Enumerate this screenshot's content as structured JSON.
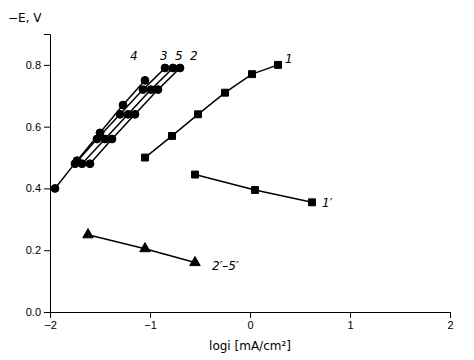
{
  "chart_data": {
    "type": "line",
    "xlabel": "logi [mA/cm²]",
    "ylabel": "−E, V",
    "xlim": [
      -2,
      2
    ],
    "ylim": [
      0,
      0.9
    ],
    "xticks": [
      {
        "value": -2,
        "label": "−2"
      },
      {
        "value": -1,
        "label": "−1"
      },
      0,
      1,
      2
    ],
    "yticks": [
      {
        "value": 0,
        "label": "0.0"
      },
      0.2,
      0.4,
      0.6,
      0.8
    ],
    "grid": false,
    "series": [
      {
        "color": "black",
        "marker": "circle",
        "x": [
          -1.95,
          -1.73,
          -1.5,
          -1.27,
          -1.05
        ],
        "values": [
          0.4,
          0.49,
          0.58,
          0.67,
          0.75
        ]
      },
      {
        "color": "black",
        "marker": "circle",
        "x": [
          -1.75,
          -1.53,
          -1.3,
          -1.07,
          -0.85
        ],
        "values": [
          0.48,
          0.56,
          0.64,
          0.72,
          0.79
        ]
      },
      {
        "color": "black",
        "marker": "circle",
        "x": [
          -1.68,
          -1.45,
          -1.22,
          -0.99,
          -0.77
        ],
        "values": [
          0.48,
          0.56,
          0.64,
          0.72,
          0.79
        ]
      },
      {
        "color": "black",
        "marker": "circle",
        "x": [
          -1.6,
          -1.38,
          -1.15,
          -0.92,
          -0.7
        ],
        "values": [
          0.48,
          0.56,
          0.64,
          0.72,
          0.79
        ]
      },
      {
        "color": "black",
        "marker": "square",
        "x": [
          -1.05,
          -0.78,
          -0.52,
          -0.25,
          0.02,
          0.28
        ],
        "values": [
          0.5,
          0.57,
          0.64,
          0.71,
          0.77,
          0.8
        ]
      },
      {
        "color": "black",
        "marker": "square",
        "x": [
          -0.55,
          0.05,
          0.62
        ],
        "values": [
          0.445,
          0.395,
          0.355
        ]
      },
      {
        "color": "black",
        "marker": "triangle",
        "x": [
          -1.62,
          -1.05,
          -0.55
        ],
        "values": [
          0.25,
          0.205,
          0.16
        ]
      }
    ],
    "annotations": [
      {
        "text": "4",
        "x": -1.2,
        "y": 0.83
      },
      {
        "text": "3",
        "x": -0.9,
        "y": 0.83
      },
      {
        "text": "5",
        "x": -0.75,
        "y": 0.83
      },
      {
        "text": "2",
        "x": -0.6,
        "y": 0.83
      },
      {
        "text": "1",
        "x": 0.35,
        "y": 0.82
      },
      {
        "text": "1′",
        "x": 0.72,
        "y": 0.355
      },
      {
        "text": "2′–5′",
        "x": -0.38,
        "y": 0.148
      }
    ]
  }
}
